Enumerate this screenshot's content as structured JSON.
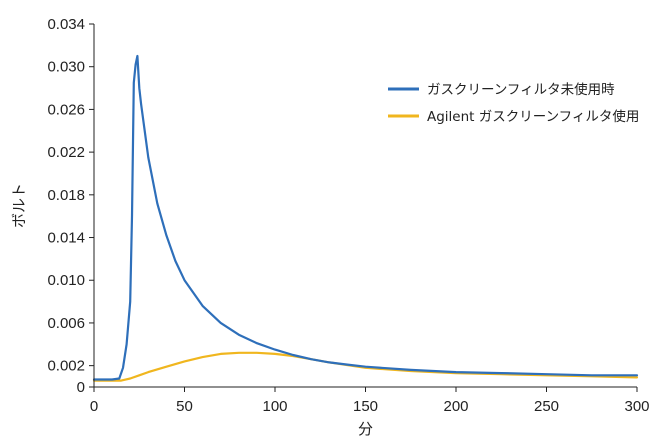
{
  "chart_data": {
    "type": "line",
    "xlabel": "分",
    "ylabel": "ボルト",
    "xlim": [
      0,
      300
    ],
    "ylim": [
      0,
      0.034
    ],
    "xticks": [
      "0",
      "50",
      "100",
      "150",
      "200",
      "250",
      "300"
    ],
    "yticks": [
      "0",
      "0.002",
      "0.006",
      "0.010",
      "0.014",
      "0.018",
      "0.022",
      "0.026",
      "0.030",
      "0.034"
    ],
    "grid": false,
    "legend_position": "top-right",
    "series": [
      {
        "name": "ガスクリーンフィルタ未使用時",
        "color": "#2e6fba",
        "x": [
          0,
          10,
          14,
          16,
          18,
          20,
          21,
          22,
          23,
          24,
          25,
          26,
          28,
          30,
          35,
          40,
          45,
          50,
          60,
          70,
          80,
          90,
          100,
          110,
          120,
          130,
          140,
          150,
          175,
          200,
          225,
          250,
          275,
          300
        ],
        "y": [
          0.0007,
          0.0007,
          0.0008,
          0.0018,
          0.004,
          0.008,
          0.016,
          0.0285,
          0.0302,
          0.031,
          0.028,
          0.0265,
          0.024,
          0.0215,
          0.0172,
          0.0142,
          0.0118,
          0.01,
          0.0076,
          0.006,
          0.0049,
          0.0041,
          0.0035,
          0.003,
          0.0026,
          0.0023,
          0.0021,
          0.0019,
          0.0016,
          0.0014,
          0.0013,
          0.0012,
          0.0011,
          0.0011
        ]
      },
      {
        "name": "Agilent ガスクリーンフィルタ使用",
        "color": "#f0b61e",
        "x": [
          0,
          10,
          15,
          20,
          25,
          30,
          40,
          50,
          60,
          70,
          80,
          85,
          90,
          100,
          110,
          120,
          130,
          150,
          175,
          200,
          225,
          250,
          275,
          300
        ],
        "y": [
          0.0006,
          0.0006,
          0.0006,
          0.0008,
          0.0011,
          0.0014,
          0.0019,
          0.0024,
          0.0028,
          0.0031,
          0.0032,
          0.0032,
          0.0032,
          0.0031,
          0.0029,
          0.0026,
          0.0023,
          0.0018,
          0.0015,
          0.0013,
          0.0012,
          0.0011,
          0.001,
          0.0009
        ]
      }
    ]
  }
}
